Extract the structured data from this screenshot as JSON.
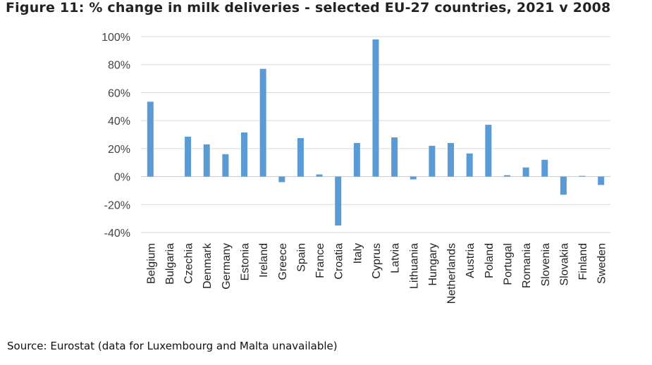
{
  "chart_data": {
    "type": "bar",
    "title": "Figure 11: % change in milk deliveries - selected EU-27 countries, 2021 v 2008",
    "xlabel": "",
    "ylabel": "",
    "ylim": [
      -40,
      100
    ],
    "yticks": [
      100,
      80,
      60,
      40,
      20,
      0,
      -20,
      -40
    ],
    "ytick_labels": [
      "100%",
      "80%",
      "60%",
      "40%",
      "20%",
      "0%",
      "-20%",
      "-40%"
    ],
    "grid": true,
    "bar_color": "#5b9bd5",
    "categories": [
      "Belgium",
      "Bulgaria",
      "Czechia",
      "Denmark",
      "Germany",
      "Estonia",
      "Ireland",
      "Greece",
      "Spain",
      "France",
      "Croatia",
      "Italy",
      "Cyprus",
      "Latvia",
      "Lithuania",
      "Hungary",
      "Netherlands",
      "Austria",
      "Poland",
      "Portugal",
      "Romania",
      "Slovenia",
      "Slovakia",
      "Finland",
      "Sweden"
    ],
    "values": [
      53.5,
      0,
      28.5,
      23,
      16,
      31.5,
      77,
      -4,
      27.5,
      1.5,
      -35,
      24,
      98,
      28,
      -2,
      22,
      24,
      16.5,
      37,
      1,
      6.5,
      12,
      -13,
      0.5,
      -6
    ]
  },
  "source": "Source: Eurostat (data for Luxembourg and Malta unavailable)"
}
